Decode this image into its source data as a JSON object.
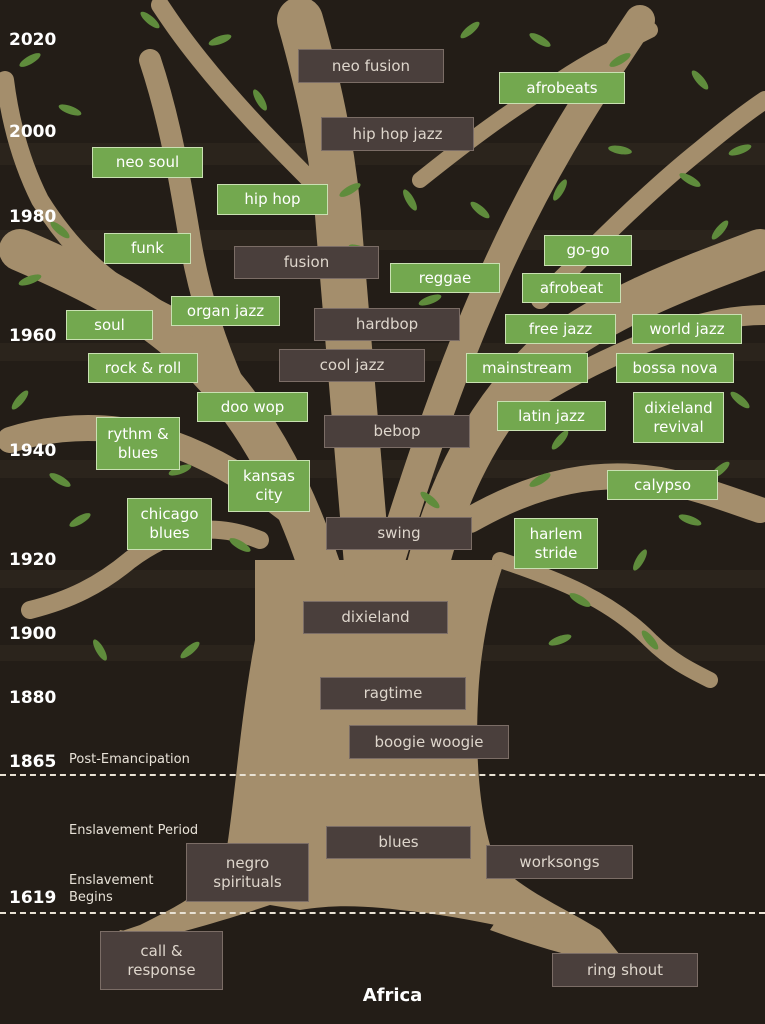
{
  "timeline": {
    "years": [
      "2020",
      "2000",
      "1980",
      "1960",
      "1940",
      "1920",
      "1900",
      "1880",
      "1865",
      "1619"
    ],
    "notes": {
      "post_emancipation": "Post-Emancipation",
      "enslavement_period": "Enslavement Period",
      "enslavement_begins": "Enslavement Begins"
    }
  },
  "genres": {
    "neo_fusion": "neo fusion",
    "afrobeats": "afrobeats",
    "hip_hop_jazz": "hip hop jazz",
    "neo_soul": "neo soul",
    "hip_hop": "hip hop",
    "funk": "funk",
    "fusion": "fusion",
    "go_go": "go-go",
    "reggae": "reggae",
    "afrobeat": "afrobeat",
    "organ_jazz": "organ jazz",
    "soul": "soul",
    "hardbop": "hardbop",
    "free_jazz": "free jazz",
    "world_jazz": "world jazz",
    "rock_and_roll": "rock & roll",
    "cool_jazz": "cool jazz",
    "mainstream": "mainstream",
    "bossa_nova": "bossa nova",
    "doo_wop": "doo wop",
    "latin_jazz": "latin jazz",
    "dixieland_revival": "dixieland revival",
    "rythm_blues": "rythm & blues",
    "bebop": "bebop",
    "kansas_city": "kansas city",
    "calypso": "calypso",
    "chicago_blues": "chicago blues",
    "swing": "swing",
    "harlem_stride": "harlem stride",
    "dixieland": "dixieland",
    "ragtime": "ragtime",
    "boogie_woogie": "boogie woogie",
    "blues": "blues",
    "negro_spirituals": "negro spirituals",
    "worksongs": "worksongs",
    "call_response": "call & response",
    "ring_shout": "ring shout"
  },
  "root_label": "Africa",
  "colors": {
    "background": "#231d17",
    "trunk": "#a48e6c",
    "leaf": "#5f8c3c",
    "genre_dark": "#4a3f3c",
    "genre_green": "#73a84f"
  }
}
